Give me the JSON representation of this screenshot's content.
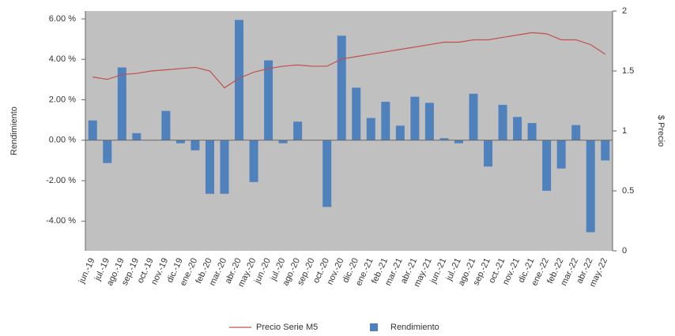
{
  "chart_data": {
    "type": "bar",
    "y_label": "Rendimiento",
    "y2_label": "$ Precio",
    "categories": [
      "jun.-19",
      "jul.-19",
      "ago.-19",
      "sep.-19",
      "oct.-19",
      "nov.-19",
      "dic.-19",
      "ene.-20",
      "feb.-20",
      "mar.-20",
      "abr.-20",
      "may.-20",
      "jun.-20",
      "jul.-20",
      "ago.-20",
      "sep.-20",
      "oct.-20",
      "nov.-20",
      "dic.-20",
      "ene.-21",
      "feb.-21",
      "mar.-21",
      "abr.-21",
      "may.-21",
      "jun.-21",
      "jul.-21",
      "ago.-21",
      "sep.-21",
      "oct.-21",
      "nov.-21",
      "dic.-21",
      "ene.-22",
      "feb.-22",
      "mar.-22",
      "abr.-22",
      "may.-22"
    ],
    "series": [
      {
        "name": "Precio Serie M5",
        "type": "line",
        "axis": "y2",
        "color": "#c0504d",
        "values": [
          1.45,
          1.43,
          1.47,
          1.48,
          1.5,
          1.51,
          1.52,
          1.53,
          1.5,
          1.36,
          1.44,
          1.49,
          1.52,
          1.54,
          1.55,
          1.54,
          1.54,
          1.6,
          1.62,
          1.64,
          1.66,
          1.68,
          1.7,
          1.72,
          1.74,
          1.74,
          1.76,
          1.76,
          1.78,
          1.8,
          1.82,
          1.81,
          1.76,
          1.76,
          1.72,
          1.64
        ]
      },
      {
        "name": "Rendimiento",
        "type": "bar",
        "color": "#4f81bd",
        "values": [
          0.98,
          -1.13,
          3.6,
          0.35,
          0,
          1.45,
          -0.15,
          -0.5,
          -2.65,
          -2.65,
          5.95,
          -2.07,
          3.95,
          -0.15,
          0.92,
          0,
          -3.3,
          5.17,
          2.6,
          1.1,
          1.9,
          0.72,
          2.15,
          1.85,
          0.1,
          -0.15,
          2.3,
          -1.3,
          1.75,
          1.15,
          0.85,
          -2.5,
          -1.4,
          0.75,
          -4.55,
          -1.0
        ]
      }
    ],
    "ylim": [
      -5.47,
      6.39
    ],
    "yticks": [
      {
        "value": -4,
        "label": "-4.00 %"
      },
      {
        "value": -2,
        "label": "-2.00 %"
      },
      {
        "value": 0,
        "label": "0.00 %"
      },
      {
        "value": 2,
        "label": "2.00 %"
      },
      {
        "value": 4,
        "label": "4.00 %"
      },
      {
        "value": 6,
        "label": "6.00 %"
      }
    ],
    "y2lim": [
      0,
      2
    ],
    "y2ticks": [
      0,
      0.5,
      1,
      1.5,
      2
    ],
    "background": "#c0c0c0",
    "legend": "bottom"
  }
}
